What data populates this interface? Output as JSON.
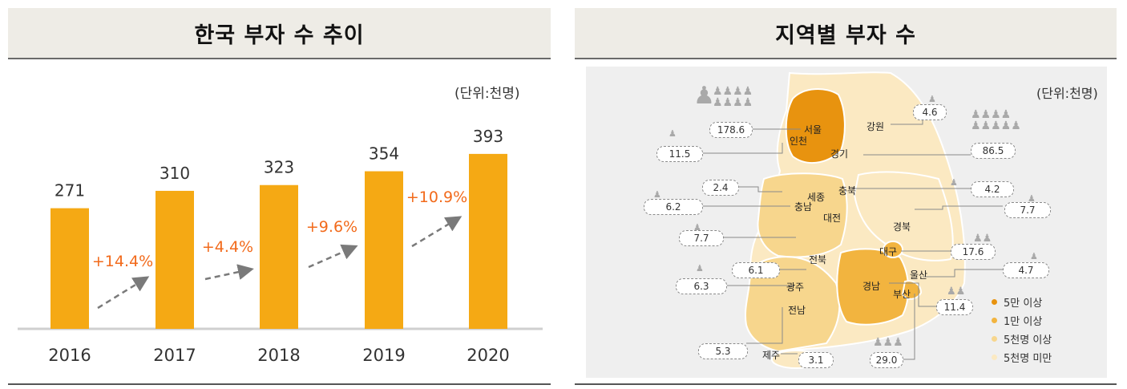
{
  "left_panel": {
    "title": "한국 부자 수 추이",
    "unit": "(단위:천명)"
  },
  "right_panel": {
    "title": "지역별 부자 수",
    "unit": "(단위:천명)"
  },
  "chart_data": [
    {
      "type": "bar",
      "title": "한국 부자 수 추이",
      "unit": "(단위:천명)",
      "categories": [
        "2016",
        "2017",
        "2018",
        "2019",
        "2020"
      ],
      "values": [
        271,
        310,
        323,
        354,
        393
      ],
      "growth_labels": [
        "+14.4%",
        "+4.4%",
        "+9.6%",
        "+10.9%"
      ],
      "colors": {
        "bar": "#f5a914",
        "growth": "#f26a1b",
        "arrow": "#7a7a7a"
      }
    },
    {
      "type": "map",
      "title": "지역별 부자 수",
      "unit": "(단위:천명)",
      "regions": [
        {
          "name": "서울",
          "value": "178.6"
        },
        {
          "name": "인천",
          "value": "11.5"
        },
        {
          "name": "경기",
          "value": "86.5"
        },
        {
          "name": "강원",
          "value": "4.6"
        },
        {
          "name": "세종",
          "value": "2.4"
        },
        {
          "name": "충북",
          "value": "4.2"
        },
        {
          "name": "충남",
          "value": "6.2"
        },
        {
          "name": "대전",
          "value": "7.7"
        },
        {
          "name": "경북",
          "value": "7.7"
        },
        {
          "name": "대구",
          "value": "17.6"
        },
        {
          "name": "전북",
          "value": "6.1"
        },
        {
          "name": "울산",
          "value": "4.7"
        },
        {
          "name": "광주",
          "value": "6.3"
        },
        {
          "name": "경남",
          "value": "11.4"
        },
        {
          "name": "부산",
          "value": "29.0"
        },
        {
          "name": "전남",
          "value": "5.3"
        },
        {
          "name": "제주",
          "value": "3.1"
        }
      ],
      "legend": [
        {
          "label": "5만 이상",
          "color": "#e8930f"
        },
        {
          "label": "1만 이상",
          "color": "#f2b43f"
        },
        {
          "label": "5천명 이상",
          "color": "#f7d68d"
        },
        {
          "label": "5천명 미만",
          "color": "#fbe9c2"
        }
      ]
    }
  ]
}
